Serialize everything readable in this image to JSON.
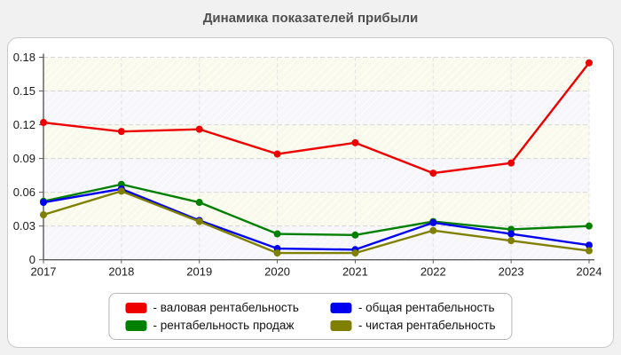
{
  "page": {
    "title": "Динамика показателей прибыли"
  },
  "chart_data": {
    "type": "line",
    "title": "Динамика показателей прибыли",
    "categories": [
      "2017",
      "2018",
      "2019",
      "2020",
      "2021",
      "2022",
      "2023",
      "2024"
    ],
    "series": [
      {
        "name": "валовая рентабельность",
        "color": "#ee0000",
        "values": [
          0.122,
          0.114,
          0.116,
          0.094,
          0.104,
          0.077,
          0.086,
          0.175
        ]
      },
      {
        "name": "рентабельность продаж",
        "color": "#008000",
        "values": [
          0.052,
          0.067,
          0.051,
          0.023,
          0.022,
          0.034,
          0.027,
          0.03
        ]
      },
      {
        "name": "общая рентабельность",
        "color": "#0000ee",
        "values": [
          0.051,
          0.063,
          0.035,
          0.01,
          0.009,
          0.033,
          0.023,
          0.013
        ]
      },
      {
        "name": "чистая рентабельность",
        "color": "#808000",
        "values": [
          0.04,
          0.061,
          0.034,
          0.006,
          0.006,
          0.026,
          0.017,
          0.008
        ]
      }
    ],
    "ylim": [
      0,
      0.18
    ],
    "ytick_step": 0.03,
    "yticks": [
      "0",
      "0.03",
      "0.06",
      "0.09",
      "0.12",
      "0.15",
      "0.18"
    ],
    "grid": true,
    "legend_position": "bottom",
    "legend_prefix": "- ",
    "colors": {
      "band_yellow": "#fafaec",
      "band_lavender": "#f6f6fb",
      "gridline": "#d6d6d6",
      "vertical_gridline": "#e2e2e2",
      "axis": "#5a5a5a",
      "title_text": "#4f4f4f"
    }
  }
}
